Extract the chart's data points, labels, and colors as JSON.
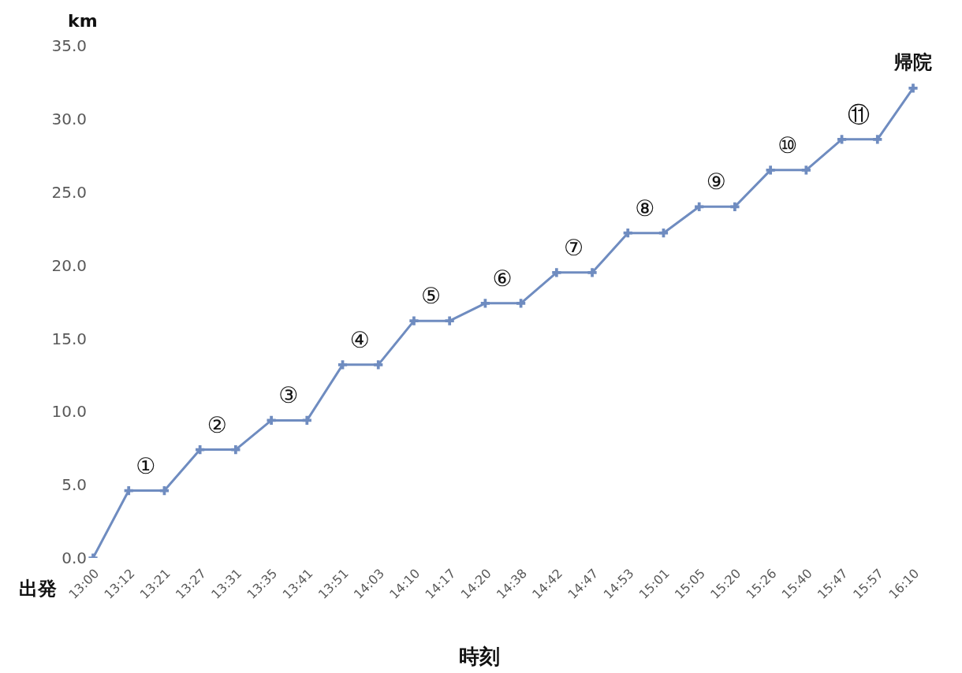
{
  "chart_data": {
    "type": "line",
    "xlabel": "時刻",
    "ylabel": "km",
    "categories": [
      "13:00",
      "13:12",
      "13:21",
      "13:27",
      "13:31",
      "13:35",
      "13:41",
      "13:51",
      "14:03",
      "14:10",
      "14:17",
      "14:20",
      "14:38",
      "14:42",
      "14:47",
      "14:53",
      "15:01",
      "15:05",
      "15:20",
      "15:26",
      "15:40",
      "15:47",
      "15:57",
      "16:10"
    ],
    "series": [
      {
        "color": "#6f8cc0",
        "values": [
          0,
          4.6,
          4.6,
          7.4,
          7.4,
          9.4,
          9.4,
          13.2,
          13.2,
          16.2,
          16.2,
          17.4,
          17.4,
          19.5,
          19.5,
          22.2,
          22.2,
          24.0,
          24.0,
          26.5,
          26.5,
          28.6,
          28.6,
          32.1
        ]
      }
    ],
    "ylim": [
      0,
      35
    ],
    "yticks": [
      {
        "value": 0,
        "label": "0.0"
      },
      {
        "value": 5,
        "label": "5.0"
      },
      {
        "value": 10,
        "label": "10.0"
      },
      {
        "value": 15,
        "label": "15.0"
      },
      {
        "value": 20,
        "label": "20.0"
      },
      {
        "value": 25,
        "label": "25.0"
      },
      {
        "value": 30,
        "label": "30.0"
      },
      {
        "value": 35,
        "label": "35.0"
      }
    ],
    "grid": false,
    "legend": false,
    "marker": "cross",
    "line_style": "solid",
    "annotations": [
      {
        "text": "出発",
        "x": "13:00",
        "y": 0
      },
      {
        "text": "①",
        "x": "13:12",
        "y": 4.6
      },
      {
        "text": "②",
        "x": "13:27",
        "y": 7.4
      },
      {
        "text": "③",
        "x": "13:35",
        "y": 9.4
      },
      {
        "text": "④",
        "x": "13:51",
        "y": 13.2
      },
      {
        "text": "⑤",
        "x": "14:10",
        "y": 16.2
      },
      {
        "text": "⑥",
        "x": "14:20",
        "y": 17.4
      },
      {
        "text": "⑦",
        "x": "14:42",
        "y": 19.5
      },
      {
        "text": "⑧",
        "x": "14:53",
        "y": 22.2
      },
      {
        "text": "⑨",
        "x": "15:05",
        "y": 24.0
      },
      {
        "text": "⑩",
        "x": "15:26",
        "y": 26.5
      },
      {
        "text": "⑪",
        "x": "15:47",
        "y": 28.6
      },
      {
        "text": "帰院",
        "x": "16:10",
        "y": 32.1
      }
    ]
  }
}
